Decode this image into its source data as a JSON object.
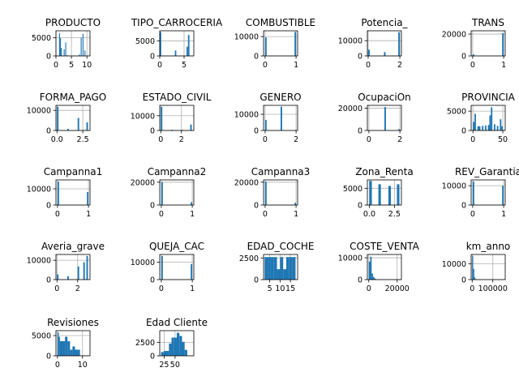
{
  "chart_data": [
    {
      "type": "bar",
      "title": "PRODUCTO",
      "xlim": [
        0,
        11
      ],
      "ylim": [
        0,
        6900
      ],
      "xticks": [
        0,
        5,
        10
      ],
      "yticks": [
        0,
        5000
      ],
      "bins": [
        [
          1,
          1.3,
          6200
        ],
        [
          1.3,
          1.6,
          4900
        ],
        [
          1.6,
          1.9,
          2200
        ],
        [
          2.5,
          2.8,
          1800
        ],
        [
          3,
          3.3,
          3700
        ],
        [
          3.6,
          3.9,
          200
        ],
        [
          7.4,
          7.7,
          400
        ],
        [
          8,
          8.3,
          5000
        ],
        [
          8.6,
          8.9,
          6100
        ],
        [
          9.2,
          9.5,
          1500
        ]
      ]
    },
    {
      "type": "bar",
      "title": "TIPO_CARROCERIA",
      "xlim": [
        0,
        7
      ],
      "ylim": [
        0,
        8400
      ],
      "xticks": [
        0,
        5
      ],
      "yticks": [
        0,
        5000
      ],
      "bins": [
        [
          0,
          0.3,
          8000
        ],
        [
          3.1,
          3.4,
          1800
        ],
        [
          5.5,
          5.8,
          3100
        ],
        [
          5.8,
          6.1,
          7000
        ]
      ]
    },
    {
      "type": "bar",
      "title": "COMBUSTIBLE",
      "xlim": [
        -0.05,
        1.05
      ],
      "ylim": [
        0,
        13000
      ],
      "xticks": [
        0,
        1
      ],
      "yticks": [
        0,
        10000
      ],
      "bins": [
        [
          0,
          0.05,
          9600
        ],
        [
          0.95,
          1,
          12400
        ]
      ]
    },
    {
      "type": "bar",
      "title": "Potencia_",
      "xlim": [
        -0.05,
        2.1
      ],
      "ylim": [
        0,
        16500
      ],
      "xticks": [
        0,
        2
      ],
      "yticks": [
        0,
        10000
      ],
      "bins": [
        [
          0,
          0.1,
          4100
        ],
        [
          1,
          1.1,
          2500
        ],
        [
          1.9,
          2,
          15500
        ]
      ]
    },
    {
      "type": "bar",
      "title": "TRANS",
      "xlim": [
        -0.05,
        1.05
      ],
      "ylim": [
        0,
        23000
      ],
      "xticks": [
        0,
        1
      ],
      "yticks": [
        0,
        20000
      ],
      "bins": [
        [
          0,
          0.05,
          1500
        ],
        [
          0.95,
          1,
          20800
        ]
      ]
    },
    {
      "type": "bar",
      "title": "FORMA_PAGO",
      "xlim": [
        -0.1,
        3.2
      ],
      "ylim": [
        0,
        12500
      ],
      "xticks": [
        0,
        2.5
      ],
      "xtick_labels": [
        "0.0",
        "2.5"
      ],
      "yticks": [
        0,
        10000
      ],
      "bins": [
        [
          0,
          0.15,
          11800
        ],
        [
          1,
          1.15,
          800
        ],
        [
          2,
          2.15,
          6200
        ],
        [
          2.85,
          3,
          4100
        ]
      ]
    },
    {
      "type": "bar",
      "title": "ESTADO_CIVIL",
      "xlim": [
        -0.1,
        3.2
      ],
      "ylim": [
        0,
        17000
      ],
      "xticks": [
        0,
        2
      ],
      "yticks": [
        0,
        10000
      ],
      "bins": [
        [
          0,
          0.15,
          16000
        ],
        [
          1,
          1.15,
          500
        ],
        [
          2,
          2.15,
          400
        ],
        [
          2.85,
          3,
          4000
        ]
      ]
    },
    {
      "type": "bar",
      "title": "GENERO",
      "xlim": [
        -0.1,
        2.1
      ],
      "ylim": [
        0,
        15500
      ],
      "xticks": [
        0,
        2
      ],
      "yticks": [
        0,
        10000
      ],
      "bins": [
        [
          0,
          0.1,
          6500
        ],
        [
          1,
          1.1,
          14700
        ],
        [
          1.9,
          2,
          300
        ]
      ]
    },
    {
      "type": "bar",
      "title": "OcupaciOn",
      "xlim": [
        -0.1,
        2.1
      ],
      "ylim": [
        0,
        22500
      ],
      "xticks": [
        0,
        2
      ],
      "yticks": [
        0,
        20000
      ],
      "bins": [
        [
          0,
          0.1,
          200
        ],
        [
          1,
          1.1,
          21000
        ],
        [
          1.9,
          2,
          1200
        ]
      ]
    },
    {
      "type": "bar",
      "title": "PROVINCIA",
      "xlim": [
        -3,
        54
      ],
      "ylim": [
        0,
        6500
      ],
      "xticks": [
        0,
        50
      ],
      "yticks": [
        0,
        5000
      ],
      "bins": [
        [
          0,
          2.5,
          2200
        ],
        [
          2.5,
          5,
          4300
        ],
        [
          7.5,
          10,
          1100
        ],
        [
          10,
          12.5,
          1100
        ],
        [
          15,
          17.5,
          1200
        ],
        [
          20,
          22.5,
          1300
        ],
        [
          25,
          27.5,
          1400
        ],
        [
          27.5,
          30,
          3900
        ],
        [
          30,
          32.5,
          6000
        ],
        [
          35,
          37.5,
          1600
        ],
        [
          40,
          42.5,
          1200
        ],
        [
          45,
          47.5,
          2900
        ],
        [
          47.5,
          50,
          1100
        ]
      ]
    },
    {
      "type": "bar",
      "title": "Campanna1",
      "xlim": [
        -0.05,
        1.05
      ],
      "ylim": [
        0,
        15500
      ],
      "xticks": [
        0,
        1
      ],
      "yticks": [
        0,
        10000
      ],
      "bins": [
        [
          0,
          0.05,
          14500
        ],
        [
          0.95,
          1,
          8000
        ]
      ]
    },
    {
      "type": "bar",
      "title": "Campanna2",
      "xlim": [
        -0.05,
        1.05
      ],
      "ylim": [
        0,
        22000
      ],
      "xticks": [
        0,
        1
      ],
      "yticks": [
        0,
        20000
      ],
      "bins": [
        [
          0,
          0.05,
          20000
        ],
        [
          0.95,
          1,
          2500
        ]
      ]
    },
    {
      "type": "bar",
      "title": "Campanna3",
      "xlim": [
        -0.05,
        1.05
      ],
      "ylim": [
        0,
        22000
      ],
      "xticks": [
        0,
        1
      ],
      "yticks": [
        0,
        20000
      ],
      "bins": [
        [
          0,
          0.05,
          20500
        ],
        [
          0.95,
          1,
          2000
        ]
      ]
    },
    {
      "type": "bar",
      "title": "Zona_Renta",
      "xlim": [
        -0.2,
        3.2
      ],
      "ylim": [
        0,
        7500
      ],
      "xticks": [
        0,
        2.5
      ],
      "xtick_labels": [
        "0.0",
        "2.5"
      ],
      "yticks": [
        0,
        5000
      ],
      "bins": [
        [
          0,
          0.25,
          7200
        ],
        [
          0.9,
          1.15,
          6200
        ],
        [
          1.9,
          2.15,
          5700
        ],
        [
          2.75,
          3,
          6200
        ]
      ]
    },
    {
      "type": "bar",
      "title": "REV_Garantia",
      "xlim": [
        -0.05,
        1.05
      ],
      "ylim": [
        0,
        13000
      ],
      "xticks": [
        0,
        1
      ],
      "yticks": [
        0,
        10000
      ],
      "bins": [
        [
          0,
          0.05,
          12200
        ],
        [
          0.95,
          1,
          10000
        ]
      ]
    },
    {
      "type": "bar",
      "title": "Averia_grave",
      "xlim": [
        -0.1,
        3.2
      ],
      "ylim": [
        0,
        13000
      ],
      "xticks": [
        0,
        2
      ],
      "yticks": [
        0,
        10000
      ],
      "bins": [
        [
          0,
          0.15,
          2700
        ],
        [
          1,
          1.15,
          1800
        ],
        [
          2,
          2.15,
          6800
        ],
        [
          2.55,
          2.7,
          9000
        ],
        [
          2.85,
          3,
          12200
        ]
      ]
    },
    {
      "type": "bar",
      "title": "QUEJA_CAC",
      "xlim": [
        -0.05,
        1.05
      ],
      "ylim": [
        0,
        14500
      ],
      "xticks": [
        0,
        1
      ],
      "yticks": [
        0,
        10000
      ],
      "bins": [
        [
          0,
          0.05,
          13600
        ],
        [
          0.95,
          1,
          9000
        ]
      ]
    },
    {
      "type": "bar",
      "title": "EDAD_COCHE",
      "xlim": [
        2,
        18.5
      ],
      "ylim": [
        0,
        2900
      ],
      "xticks": [
        5,
        10,
        15
      ],
      "yticks": [
        0,
        2500
      ],
      "bins": [
        [
          2.5,
          4,
          2600
        ],
        [
          4,
          5.5,
          2600
        ],
        [
          5.5,
          7,
          2600
        ],
        [
          7,
          8.5,
          2600
        ],
        [
          8.5,
          10,
          1200
        ],
        [
          10,
          11.5,
          2600
        ],
        [
          11.5,
          13,
          1200
        ],
        [
          13,
          14.5,
          2600
        ],
        [
          14.5,
          16,
          2600
        ],
        [
          16,
          17.5,
          2600
        ]
      ]
    },
    {
      "type": "bar",
      "title": "COSTE_VENTA",
      "xlim": [
        -1000,
        23000
      ],
      "ylim": [
        0,
        11500
      ],
      "xticks": [
        0,
        20000
      ],
      "yticks": [
        0,
        10000
      ],
      "bins": [
        [
          0,
          1000,
          8200
        ],
        [
          1000,
          2000,
          10500
        ],
        [
          2000,
          3000,
          2800
        ],
        [
          3000,
          4000,
          1200
        ],
        [
          4000,
          5000,
          400
        ]
      ]
    },
    {
      "type": "bar",
      "title": "km_anno",
      "xlim": [
        -5000,
        160000
      ],
      "ylim": [
        0,
        16000
      ],
      "xticks": [
        0,
        100000
      ],
      "yticks": [
        0,
        10000
      ],
      "bins": [
        [
          0,
          5000,
          15200
        ],
        [
          5000,
          10000,
          6800
        ],
        [
          10000,
          15000,
          1500
        ],
        [
          15000,
          20000,
          300
        ]
      ]
    },
    {
      "type": "bar",
      "title": "Revisiones",
      "xlim": [
        -0.6,
        13
      ],
      "ylim": [
        0,
        6200
      ],
      "xticks": [
        0,
        10
      ],
      "yticks": [
        0,
        5000
      ],
      "bins": [
        [
          0,
          0.5,
          5800
        ],
        [
          0.5,
          1,
          4700
        ],
        [
          1,
          2,
          3600
        ],
        [
          2,
          3,
          3600
        ],
        [
          3,
          4,
          4700
        ],
        [
          4,
          5,
          3600
        ],
        [
          5,
          6,
          1500
        ],
        [
          6,
          7,
          2300
        ],
        [
          7,
          8,
          1500
        ],
        [
          8,
          9,
          1500
        ]
      ]
    },
    {
      "type": "bar",
      "title": "Edad Cliente",
      "xlim": [
        15,
        93
      ],
      "ylim": [
        0,
        4700
      ],
      "xticks": [
        25,
        50
      ],
      "yticks": [
        0,
        2500
      ],
      "bins": [
        [
          18,
          24,
          700
        ],
        [
          24,
          30,
          900
        ],
        [
          30,
          36,
          900
        ],
        [
          36,
          42,
          2300
        ],
        [
          42,
          48,
          3400
        ],
        [
          48,
          54,
          3400
        ],
        [
          54,
          60,
          4300
        ],
        [
          60,
          66,
          3700
        ],
        [
          66,
          72,
          2600
        ],
        [
          72,
          78,
          1100
        ]
      ]
    }
  ]
}
